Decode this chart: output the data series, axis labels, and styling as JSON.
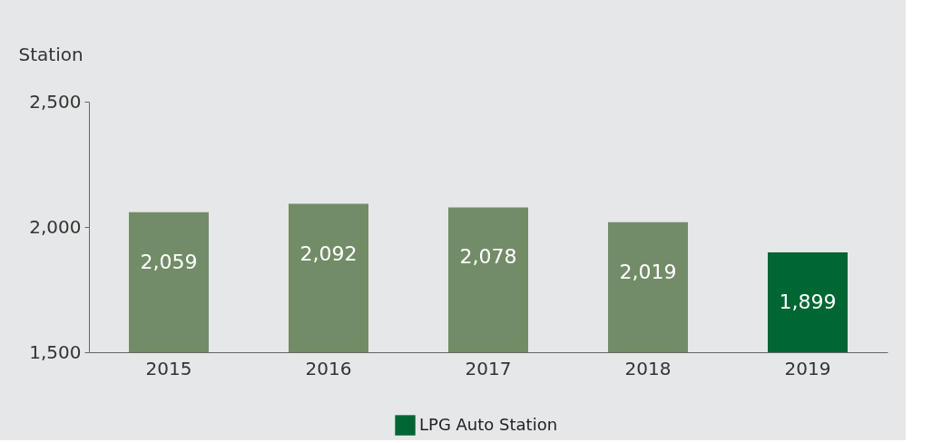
{
  "chart_data": {
    "type": "bar",
    "ylabel": "Station",
    "categories": [
      "2015",
      "2016",
      "2017",
      "2018",
      "2019"
    ],
    "series": [
      {
        "name": "LPG Auto Station",
        "color": "#006633",
        "colors": [
          "#738c68",
          "#738c68",
          "#738c68",
          "#738c68",
          "#006633"
        ],
        "values": [
          2059,
          2092,
          2078,
          2019,
          1899
        ],
        "value_labels": [
          "2,059",
          "2,092",
          "2,078",
          "2,019",
          "1,899"
        ]
      }
    ],
    "ylim": [
      1500,
      2500
    ],
    "yticks": [
      {
        "value": 1500,
        "label": "1,500"
      },
      {
        "value": 2000,
        "label": "2,000"
      },
      {
        "value": 2500,
        "label": "2,500"
      }
    ],
    "data_labels": true,
    "legend": "bottom"
  }
}
